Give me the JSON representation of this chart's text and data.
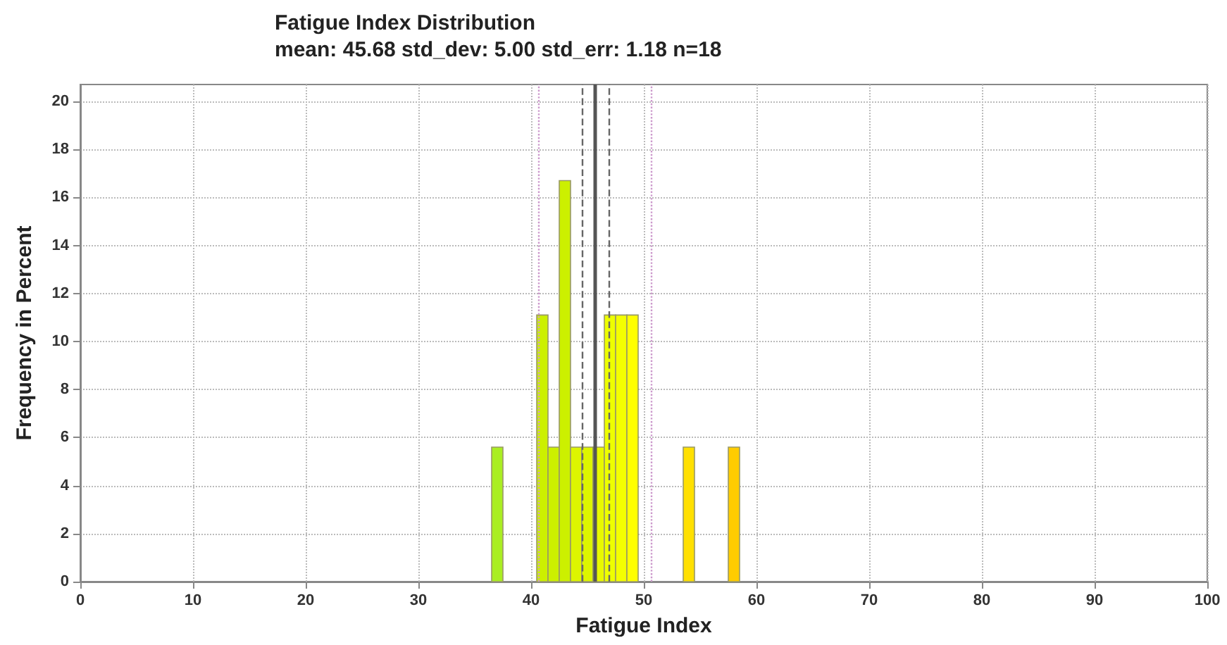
{
  "chart_data": {
    "type": "histogram",
    "title": "Fatigue Index Distribution",
    "subtitle": "mean: 45.68 std_dev: 5.00 std_err: 1.18 n=18",
    "xlabel": "Fatigue Index",
    "ylabel": "Frequency in Percent",
    "bins": [
      36.5,
      37.5,
      38.5,
      39.5,
      40.5,
      41.5,
      42.5,
      43.5,
      44.5,
      45.5,
      46.5,
      47.5,
      48.5,
      49.5,
      50.5,
      51.5,
      52.5,
      53.5,
      54.5,
      55.5,
      56.5,
      57.5,
      58.5
    ],
    "values": [
      5.6,
      0,
      0,
      0,
      11.1,
      5.6,
      16.7,
      5.6,
      5.6,
      5.6,
      11.1,
      11.1,
      11.1,
      0,
      0,
      0,
      0,
      5.6,
      0,
      0,
      0,
      5.6
    ],
    "colors": [
      "#aaee22",
      null,
      null,
      null,
      "#ccf000",
      "#ccf000",
      "#ccf000",
      "#ddf500",
      "#ddf500",
      "#e8f800",
      "#eeff00",
      "#f4ff00",
      "#ffff00",
      null,
      null,
      null,
      null,
      "#ffe000",
      null,
      null,
      null,
      "#ffcc00"
    ],
    "xlim": [
      0,
      100
    ],
    "xticks": [
      0,
      10,
      20,
      30,
      40,
      50,
      60,
      70,
      80,
      90,
      100
    ],
    "ylim": [
      0,
      20.7
    ],
    "yticks": [
      0,
      2,
      4,
      6,
      8,
      10,
      12,
      14,
      16,
      18,
      20
    ],
    "grid": true,
    "ref_lines": [
      {
        "axis": "x",
        "value": 45.68,
        "color": "#555555",
        "line_style": "solid"
      },
      {
        "axis": "x",
        "value": 44.5,
        "color": "#666666",
        "line_style": "dashed"
      },
      {
        "axis": "x",
        "value": 46.86,
        "color": "#666666",
        "line_style": "dashed"
      },
      {
        "axis": "x",
        "value": 40.68,
        "color": "#cc99cc",
        "line_style": "dotted"
      },
      {
        "axis": "x",
        "value": 50.68,
        "color": "#cc99cc",
        "line_style": "dotted"
      }
    ]
  }
}
